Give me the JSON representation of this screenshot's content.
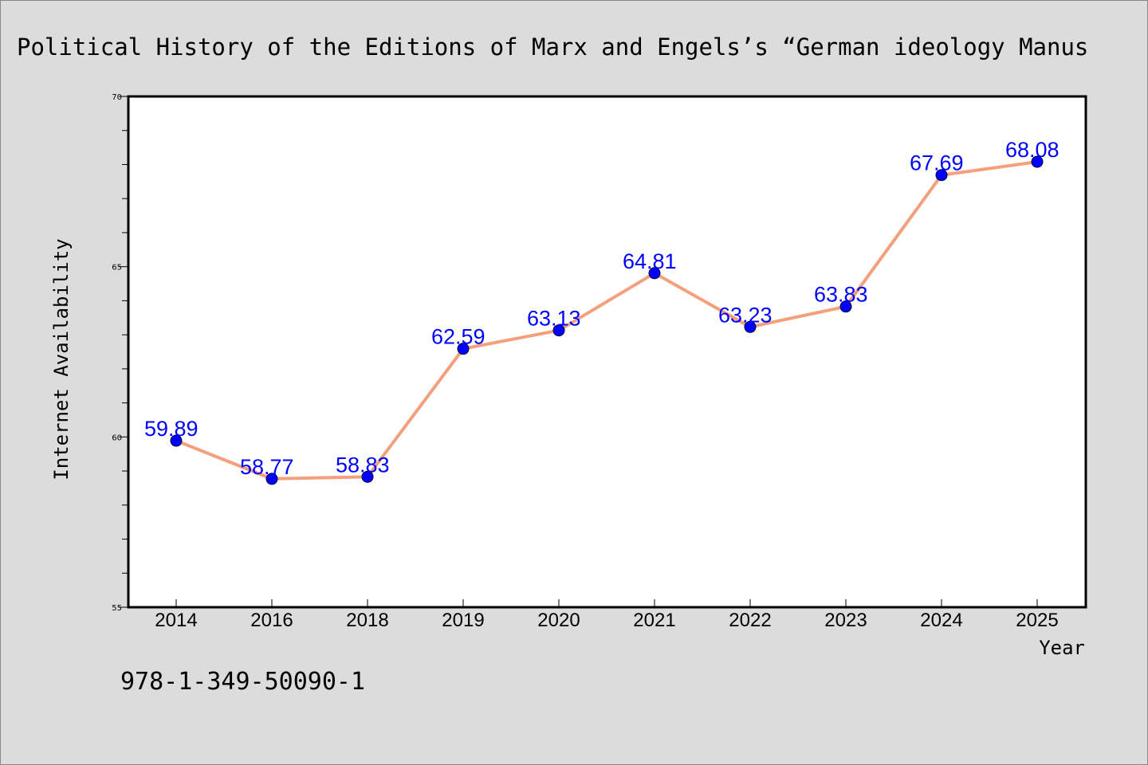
{
  "chart_data": {
    "type": "line",
    "title": "Political History of the Editions of Marx and Engels’s “German ideology Manus",
    "xlabel": "Year",
    "ylabel": "Internet Availability",
    "categories": [
      "2014",
      "2016",
      "2018",
      "2019",
      "2020",
      "2021",
      "2022",
      "2023",
      "2024",
      "2025"
    ],
    "values": [
      59.89,
      58.77,
      58.83,
      62.59,
      63.13,
      64.81,
      63.23,
      63.83,
      67.69,
      68.08
    ],
    "data_labels": [
      "59.89",
      "58.77",
      "58.83",
      "62.59",
      "63.13",
      "64.81",
      "63.23",
      "63.83",
      "67.69",
      "68.08"
    ],
    "ylim": [
      55,
      70
    ],
    "yticks": [
      "55",
      "60",
      "65",
      "70"
    ],
    "grid": false,
    "line_color": "#f4a07c",
    "marker_color": "#0000ff",
    "label_color": "#0000ff"
  },
  "footer": {
    "isbn": "978-1-349-50090-1"
  }
}
